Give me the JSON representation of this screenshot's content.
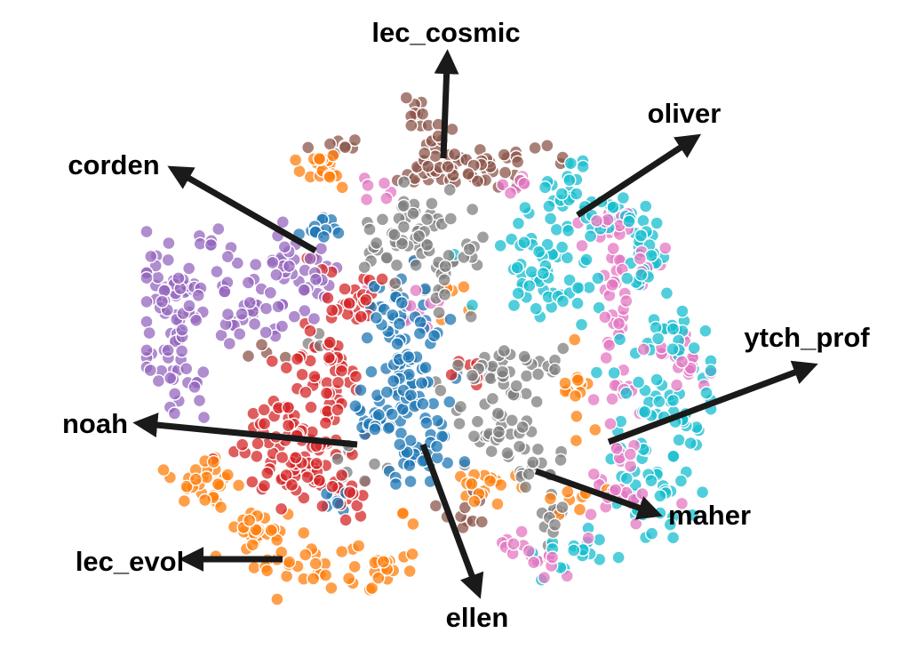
{
  "chart_data": {
    "type": "scatter",
    "title": "",
    "xlabel": "",
    "ylabel": "",
    "axes_visible": false,
    "grid": false,
    "legend": "none",
    "marker": {
      "shape": "circle",
      "edge": "white",
      "opacity": 0.75
    },
    "series": [
      {
        "label": "lec_cosmic",
        "color": "#8c564b"
      },
      {
        "label": "oliver",
        "color": "#17becf"
      },
      {
        "label": "ytch_prof",
        "color": "#e377c2"
      },
      {
        "label": "maher",
        "color": "#7f7f7f"
      },
      {
        "label": "ellen",
        "color": "#1f77b4"
      },
      {
        "label": "lec_evol",
        "color": "#ff7f0e"
      },
      {
        "label": "noah",
        "color": "#d62728"
      },
      {
        "label": "corden",
        "color": "#9467bd"
      }
    ]
  }
}
